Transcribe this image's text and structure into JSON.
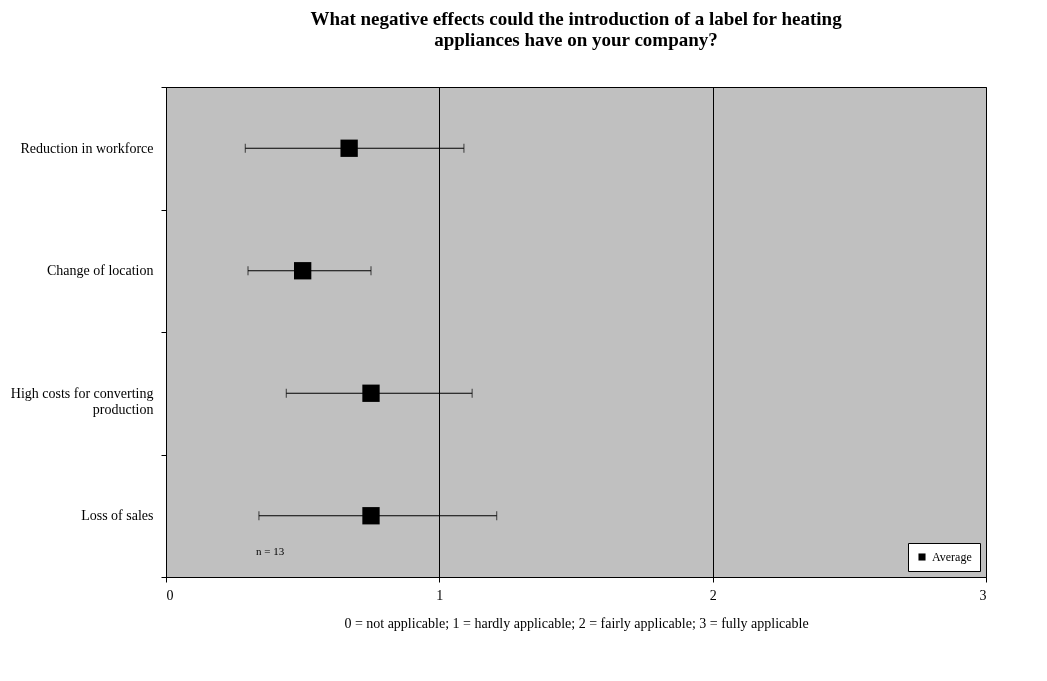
{
  "chart_data": {
    "type": "scatter",
    "title": "What negative effects could the introduction of a label for heating appliances have on your company?",
    "xlabel": "0 = not applicable;          1 = hardly applicable;          2 = fairly applicable;          3 = fully applicable",
    "orientation": "horizontal",
    "categories": [
      "Reduction in workforce",
      "Change of location",
      "High costs for converting production",
      "Loss of sales"
    ],
    "series": [
      {
        "name": "Average",
        "color": "#000000",
        "values": [
          0.67,
          0.5,
          0.75,
          0.75
        ],
        "errors": [
          [
            0.29,
            1.09
          ],
          [
            0.3,
            0.75
          ],
          [
            0.44,
            1.12
          ],
          [
            0.34,
            1.21
          ]
        ]
      }
    ],
    "xlim": [
      0,
      3
    ],
    "xticks": [
      0,
      1,
      2,
      3
    ],
    "grid": "x",
    "legend": "bottom right",
    "marker": "square",
    "annotations": [
      "n = 13"
    ]
  }
}
